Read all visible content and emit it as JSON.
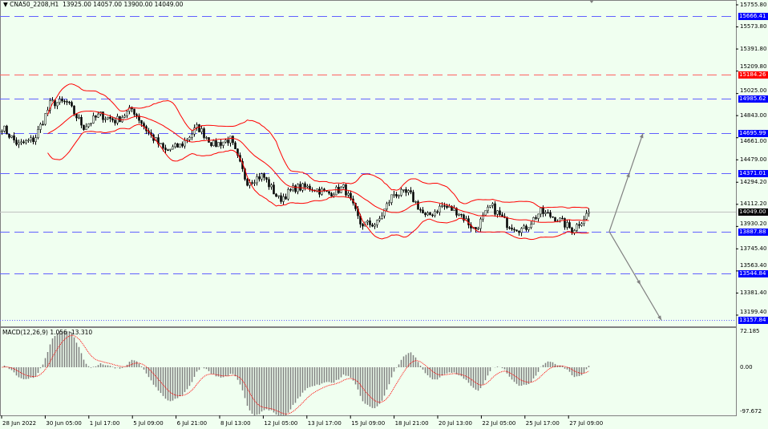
{
  "header": {
    "symbol": "CNA50_2208,H1",
    "open": "13925.00",
    "high": "14057.00",
    "low": "13900.00",
    "close": "14049.00"
  },
  "macd": {
    "label": "MACD(12,26,9) 1.056 -13.310",
    "axis": [
      "72.185",
      "0.00",
      "-97.672"
    ],
    "range": [
      -97.672,
      72.185
    ]
  },
  "chart_data": {
    "type": "candlestick",
    "title": "CNA50_2208,H1",
    "ylim": [
      13130,
      15780
    ],
    "y_ticks": [
      "15755.80",
      "15573.80",
      "15391.80",
      "15209.80",
      "15025.00",
      "14843.00",
      "14661.00",
      "14479.00",
      "14294.20",
      "14112.20",
      "13930.20",
      "13745.40",
      "13563.40",
      "13381.40",
      "13199.40"
    ],
    "x_ticks": [
      "28 Jun 2022",
      "30 Jun 05:00",
      "1 Jul 17:00",
      "5 Jul 09:00",
      "6 Jul 21:00",
      "8 Jul 13:00",
      "12 Jul 05:00",
      "13 Jul 17:00",
      "15 Jul 09:00",
      "18 Jul 21:00",
      "20 Jul 13:00",
      "22 Jul 05:00",
      "25 Jul 17:00",
      "27 Jul 09:00"
    ],
    "approx_close_path": [
      14750,
      14600,
      14650,
      14950,
      14950,
      14750,
      14850,
      14800,
      14900,
      14700,
      14550,
      14600,
      14750,
      14600,
      14650,
      14300,
      14350,
      14150,
      14250,
      14250,
      14200,
      14250,
      13950,
      13950,
      14200,
      14200,
      14000,
      14100,
      14050,
      13900,
      14100,
      13950,
      13900,
      14050,
      14000,
      13900,
      14049
    ],
    "indicators": [
      "Bollinger Bands(20)",
      "MACD(12,26,9)"
    ],
    "levels": [
      {
        "price": "15666.41",
        "color": "#0000ff",
        "style": "dashed"
      },
      {
        "price": "15184.26",
        "color": "#ff0000",
        "style": "dashed"
      },
      {
        "price": "14985.62",
        "color": "#0000ff",
        "style": "dashed"
      },
      {
        "price": "14695.99",
        "color": "#0000ff",
        "style": "dashed"
      },
      {
        "price": "14371.01",
        "color": "#0000ff",
        "style": "dashed"
      },
      {
        "price": "13887.88",
        "color": "#0000ff",
        "style": "dashed"
      },
      {
        "price": "13544.84",
        "color": "#0000ff",
        "style": "dashed"
      },
      {
        "price": "13157.84",
        "color": "#0000ff",
        "style": "dotted"
      }
    ],
    "current_price": "14049.00",
    "projections": {
      "from": "13887.88",
      "up_target": "14695.99",
      "down_target": "13157.84"
    },
    "colors": {
      "band": "#ff0000",
      "candle": "#000000",
      "macd_hist": "#808080",
      "signal": "#ff0000"
    }
  }
}
